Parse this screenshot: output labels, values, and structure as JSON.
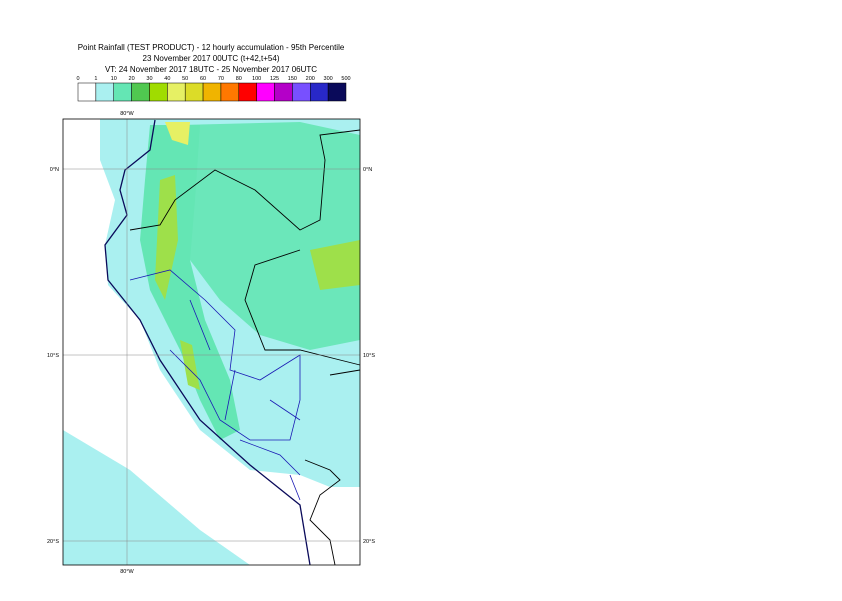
{
  "header": {
    "title": "Point Rainfall (TEST PRODUCT) - 12 hourly accumulation - 95th Percentile",
    "run": "23 November 2017 00UTC (t+42,t+54)",
    "valid": "VT: 24 November 2017 18UTC - 25 November 2017 06UTC"
  },
  "legend": {
    "thresholds": [
      0,
      1,
      10,
      20,
      30,
      40,
      50,
      60,
      70,
      80,
      100,
      125,
      150,
      200,
      300,
      500
    ],
    "colors": [
      "#ffffff",
      "#aaf0f0",
      "#64e6b4",
      "#50c850",
      "#a0dc00",
      "#e6f064",
      "#dcdc28",
      "#f0b400",
      "#ff7800",
      "#ff0000",
      "#ff00ff",
      "#b400c8",
      "#7850ff",
      "#2828c8",
      "#0a0a5a"
    ]
  },
  "map": {
    "lon_label": "80°W",
    "lat_labels": [
      "0°N",
      "10°S",
      "20°S"
    ]
  }
}
